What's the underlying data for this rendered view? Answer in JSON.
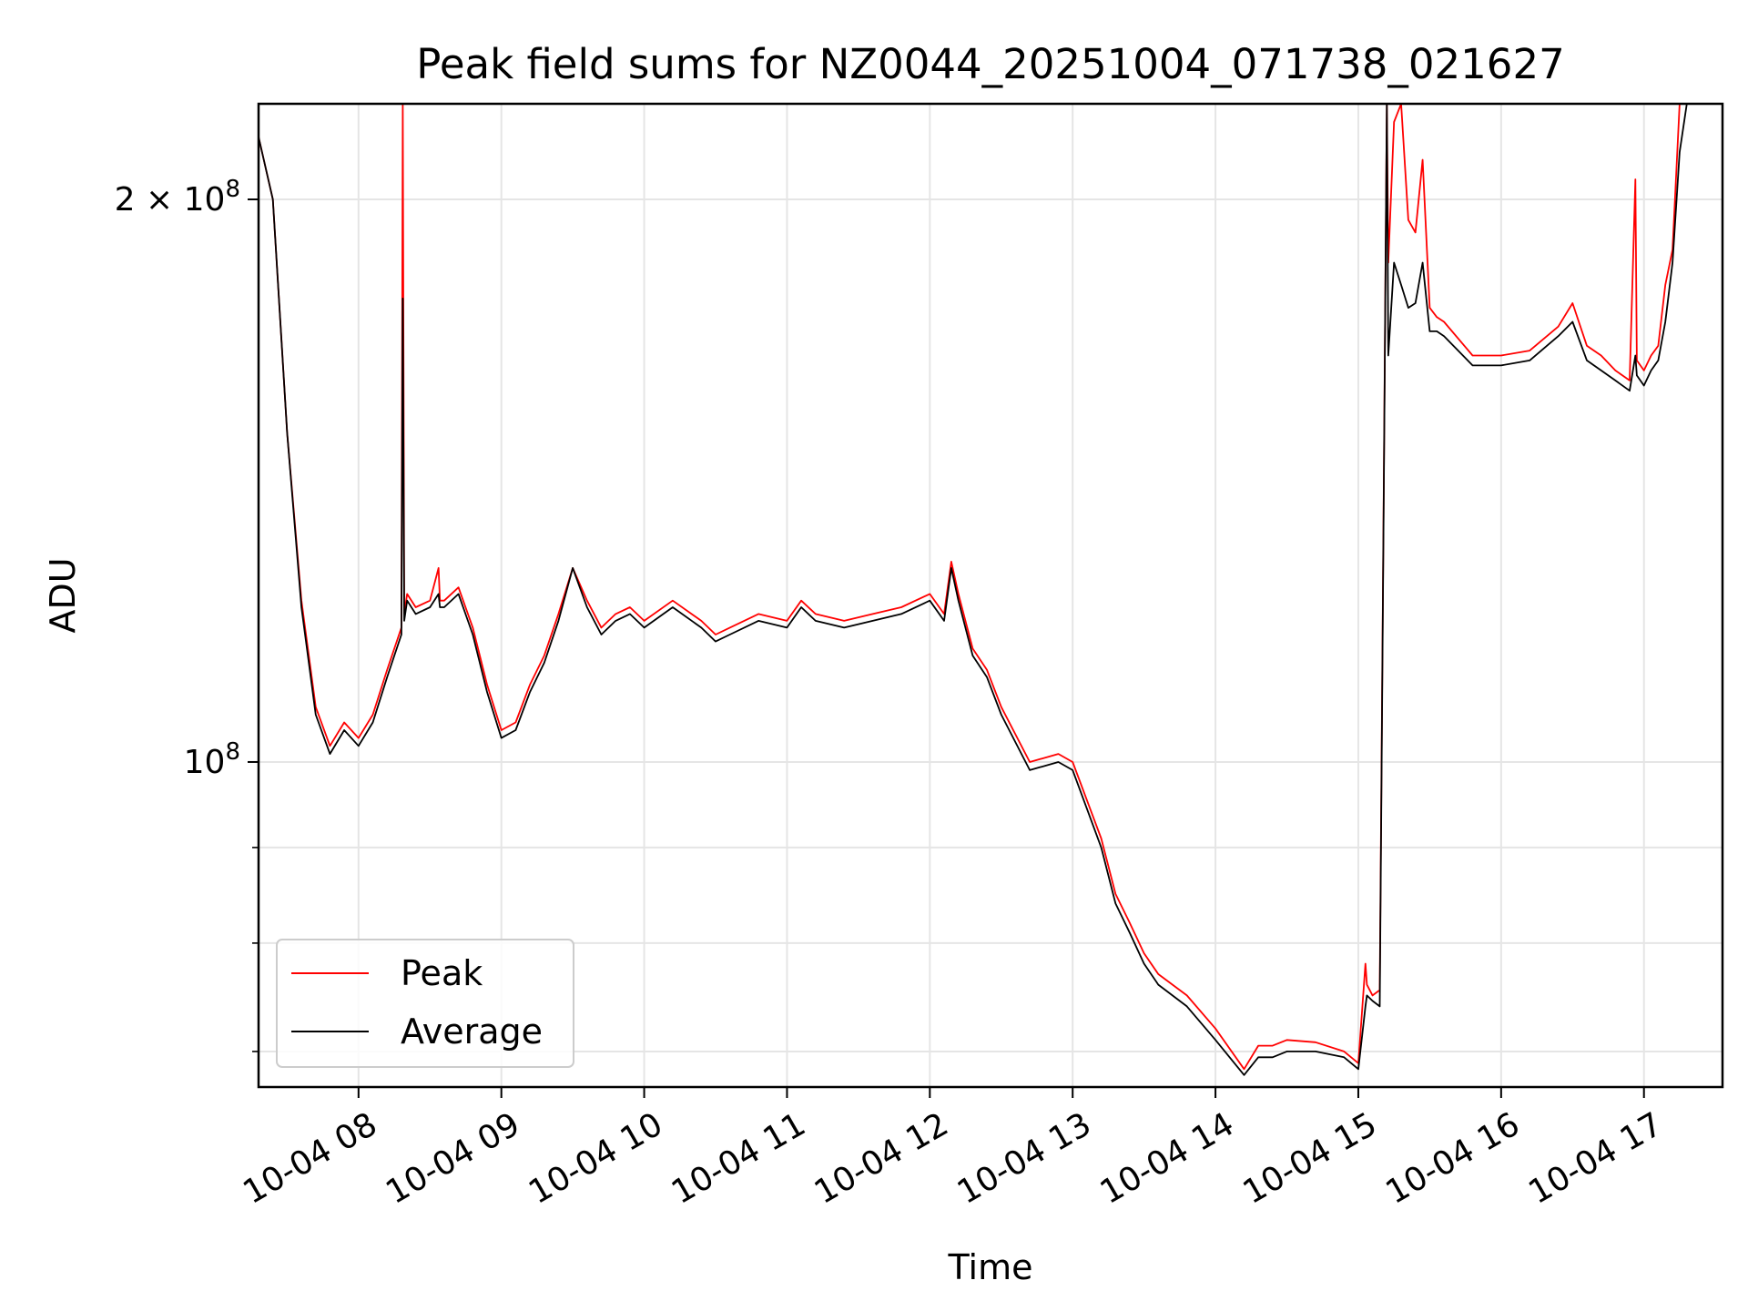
{
  "chart_data": {
    "type": "line",
    "title": "Peak field sums for NZ0044_20251004_071738_021627",
    "xlabel": "Time",
    "ylabel": "ADU",
    "x_unit": "date-hour",
    "date_prefix": "10-04",
    "x_ticks": [
      8,
      9,
      10,
      11,
      12,
      13,
      14,
      15,
      16,
      17
    ],
    "x_tick_labels": [
      "10-04 08",
      "10-04 09",
      "10-04 10",
      "10-04 11",
      "10-04 12",
      "10-04 13",
      "10-04 14",
      "10-04 15",
      "10-04 16",
      "10-04 17"
    ],
    "xlim": [
      7.3,
      17.55
    ],
    "ylim": [
      67000000,
      225000000
    ],
    "yscale": "log",
    "y_major_ticks": [
      100000000,
      200000000
    ],
    "y_tick_labels": [
      "10^8",
      "2×10^8"
    ],
    "y_minor_ticks": [
      70000000,
      80000000,
      90000000
    ],
    "grid": true,
    "legend_position": "lower-left",
    "series": [
      {
        "name": "Peak",
        "color": "#ff0000",
        "x": [
          7.3,
          7.4,
          7.5,
          7.6,
          7.7,
          7.8,
          7.9,
          8.0,
          8.1,
          8.2,
          8.3,
          8.31,
          8.32,
          8.34,
          8.4,
          8.5,
          8.56,
          8.57,
          8.6,
          8.7,
          8.8,
          8.9,
          9.0,
          9.1,
          9.2,
          9.3,
          9.4,
          9.5,
          9.6,
          9.7,
          9.8,
          9.9,
          10.0,
          10.2,
          10.4,
          10.5,
          10.6,
          10.8,
          11.0,
          11.1,
          11.2,
          11.4,
          11.6,
          11.8,
          12.0,
          12.1,
          12.15,
          12.2,
          12.3,
          12.4,
          12.5,
          12.7,
          12.9,
          13.0,
          13.2,
          13.3,
          13.4,
          13.5,
          13.6,
          13.8,
          14.0,
          14.2,
          14.3,
          14.4,
          14.5,
          14.7,
          14.9,
          15.0,
          15.05,
          15.06,
          15.1,
          15.15,
          15.2,
          15.21,
          15.25,
          15.3,
          15.35,
          15.4,
          15.45,
          15.5,
          15.55,
          15.6,
          15.8,
          16.0,
          16.2,
          16.4,
          16.5,
          16.6,
          16.7,
          16.8,
          16.9,
          16.94,
          16.95,
          17.0,
          17.05,
          17.1,
          17.15,
          17.2,
          17.25,
          17.3,
          17.4,
          17.5,
          17.55
        ],
        "y": [
          216000000,
          200000000,
          150000000,
          122000000,
          107000000,
          102000000,
          105000000,
          103000000,
          106000000,
          112000000,
          118000000,
          225000000,
          120000000,
          123000000,
          121000000,
          122000000,
          127000000,
          122000000,
          122000000,
          124000000,
          118000000,
          110000000,
          104000000,
          105000000,
          110000000,
          114000000,
          120000000,
          127000000,
          122000000,
          118000000,
          120000000,
          121000000,
          119000000,
          122000000,
          119000000,
          117000000,
          118000000,
          120000000,
          119000000,
          122000000,
          120000000,
          119000000,
          120000000,
          121000000,
          123000000,
          120000000,
          128000000,
          123000000,
          115000000,
          112000000,
          107000000,
          100000000,
          101000000,
          100000000,
          91000000,
          85000000,
          82000000,
          79000000,
          77000000,
          75000000,
          72000000,
          68500000,
          70500000,
          70500000,
          71000000,
          70800000,
          70000000,
          69000000,
          78000000,
          76000000,
          75000000,
          75500000,
          225000000,
          185000000,
          220000000,
          225000000,
          195000000,
          192000000,
          210000000,
          175000000,
          173000000,
          172000000,
          165000000,
          165000000,
          166000000,
          171000000,
          176000000,
          167000000,
          165000000,
          162000000,
          160000000,
          205000000,
          164000000,
          162000000,
          165000000,
          167000000,
          180000000,
          188000000,
          225000000,
          225000000,
          225000000,
          225000000,
          225000000
        ]
      },
      {
        "name": "Average",
        "color": "#000000",
        "x": [
          7.3,
          7.4,
          7.5,
          7.6,
          7.7,
          7.8,
          7.9,
          8.0,
          8.1,
          8.2,
          8.3,
          8.31,
          8.32,
          8.34,
          8.4,
          8.5,
          8.56,
          8.57,
          8.6,
          8.7,
          8.8,
          8.9,
          9.0,
          9.1,
          9.2,
          9.3,
          9.4,
          9.5,
          9.6,
          9.7,
          9.8,
          9.9,
          10.0,
          10.2,
          10.4,
          10.5,
          10.6,
          10.8,
          11.0,
          11.1,
          11.2,
          11.4,
          11.6,
          11.8,
          12.0,
          12.1,
          12.15,
          12.2,
          12.3,
          12.4,
          12.5,
          12.7,
          12.9,
          13.0,
          13.2,
          13.3,
          13.4,
          13.5,
          13.6,
          13.8,
          14.0,
          14.2,
          14.3,
          14.4,
          14.5,
          14.7,
          14.9,
          15.0,
          15.05,
          15.06,
          15.1,
          15.15,
          15.2,
          15.21,
          15.25,
          15.3,
          15.35,
          15.4,
          15.45,
          15.5,
          15.55,
          15.6,
          15.8,
          16.0,
          16.2,
          16.4,
          16.5,
          16.6,
          16.7,
          16.8,
          16.9,
          16.94,
          16.95,
          17.0,
          17.05,
          17.1,
          17.15,
          17.2,
          17.25,
          17.3,
          17.4,
          17.5,
          17.55
        ],
        "y": [
          216000000,
          200000000,
          150000000,
          121000000,
          106000000,
          101000000,
          104000000,
          102000000,
          105000000,
          111000000,
          117000000,
          177000000,
          119000000,
          122000000,
          120000000,
          121000000,
          123000000,
          121000000,
          121000000,
          123000000,
          117000000,
          109000000,
          103000000,
          104000000,
          109000000,
          113000000,
          119000000,
          127000000,
          121000000,
          117000000,
          119000000,
          120000000,
          118000000,
          121000000,
          118000000,
          116000000,
          117000000,
          119000000,
          118000000,
          121000000,
          119000000,
          118000000,
          119000000,
          120000000,
          122000000,
          119000000,
          127000000,
          122000000,
          114000000,
          111000000,
          106000000,
          99000000,
          100000000,
          99000000,
          90000000,
          84000000,
          81000000,
          78000000,
          76000000,
          74000000,
          71000000,
          68000000,
          69500000,
          69500000,
          70000000,
          70000000,
          69500000,
          68500000,
          74000000,
          75000000,
          74500000,
          74000000,
          225000000,
          165000000,
          185000000,
          180000000,
          175000000,
          176000000,
          185000000,
          170000000,
          170000000,
          169000000,
          163000000,
          163000000,
          164000000,
          169000000,
          172000000,
          164000000,
          162000000,
          160000000,
          158000000,
          165000000,
          161000000,
          159000000,
          162000000,
          164000000,
          172000000,
          185000000,
          212000000,
          225000000,
          225000000,
          225000000,
          225000000
        ]
      }
    ]
  }
}
